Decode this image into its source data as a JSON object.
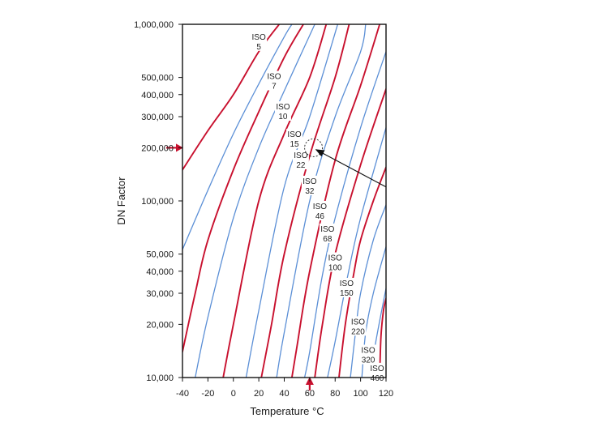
{
  "chart_data": {
    "type": "line",
    "title": "",
    "xlabel": "Temperature °C",
    "ylabel": "DN Factor",
    "x_scale": "linear",
    "y_scale": "log",
    "xlim": [
      -40,
      120
    ],
    "ylim": [
      10000,
      1000000
    ],
    "x_ticks": [
      -40,
      -20,
      0,
      20,
      40,
      60,
      80,
      100,
      120
    ],
    "x_tick_labels": [
      "-40",
      "-20",
      "0",
      "20",
      "40",
      "60",
      "80",
      "100",
      "120"
    ],
    "y_ticks": [
      10000,
      20000,
      30000,
      40000,
      50000,
      100000,
      200000,
      300000,
      400000,
      500000,
      1000000
    ],
    "y_tick_labels": [
      "10,000",
      "20,000",
      "30,000",
      "40,000",
      "50,000",
      "100,000",
      "200,000",
      "300,000",
      "400,000",
      "500,000",
      "1,000,000"
    ],
    "grid": false,
    "colors": {
      "red": "#c8102e",
      "blue": "#5b8fd6",
      "axis": "#111111",
      "marker": "#c8102e"
    },
    "curves": [
      {
        "color": "red",
        "points": [
          [
            -40,
            150000
          ],
          [
            -20,
            250000
          ],
          [
            0,
            400000
          ],
          [
            20,
            700000
          ],
          [
            36,
            1000000
          ]
        ]
      },
      {
        "color": "blue",
        "points": [
          [
            -40,
            53000
          ],
          [
            -20,
            115000
          ],
          [
            0,
            240000
          ],
          [
            20,
            460000
          ],
          [
            40,
            850000
          ],
          [
            46,
            1000000
          ]
        ]
      },
      {
        "color": "red",
        "points": [
          [
            -40,
            14000
          ],
          [
            -30,
            30000
          ],
          [
            -20,
            60000
          ],
          [
            0,
            150000
          ],
          [
            20,
            320000
          ],
          [
            40,
            650000
          ],
          [
            55,
            1000000
          ]
        ]
      },
      {
        "color": "blue",
        "points": [
          [
            -30,
            10000
          ],
          [
            -20,
            22000
          ],
          [
            0,
            80000
          ],
          [
            20,
            200000
          ],
          [
            40,
            420000
          ],
          [
            64,
            1000000
          ]
        ]
      },
      {
        "color": "red",
        "points": [
          [
            -8,
            10000
          ],
          [
            0,
            20000
          ],
          [
            20,
            100000
          ],
          [
            40,
            240000
          ],
          [
            60,
            500000
          ],
          [
            73,
            1000000
          ]
        ]
      },
      {
        "color": "blue",
        "points": [
          [
            10,
            10000
          ],
          [
            20,
            24000
          ],
          [
            40,
            120000
          ],
          [
            60,
            300000
          ],
          [
            82,
            1000000
          ]
        ]
      },
      {
        "color": "red",
        "points": [
          [
            22,
            10000
          ],
          [
            30,
            20000
          ],
          [
            40,
            50000
          ],
          [
            60,
            180000
          ],
          [
            80,
            500000
          ],
          [
            91,
            1000000
          ]
        ]
      },
      {
        "color": "blue",
        "points": [
          [
            34,
            10000
          ],
          [
            40,
            18000
          ],
          [
            60,
            100000
          ],
          [
            80,
            300000
          ],
          [
            100,
            700000
          ],
          [
            104,
            1000000
          ]
        ]
      },
      {
        "color": "red",
        "points": [
          [
            46,
            10000
          ],
          [
            50,
            15000
          ],
          [
            60,
            40000
          ],
          [
            80,
            170000
          ],
          [
            100,
            450000
          ],
          [
            115,
            1000000
          ]
        ]
      },
      {
        "color": "blue",
        "points": [
          [
            56,
            10000
          ],
          [
            60,
            14000
          ],
          [
            70,
            38000
          ],
          [
            80,
            80000
          ],
          [
            100,
            260000
          ],
          [
            120,
            700000
          ]
        ]
      },
      {
        "color": "red",
        "points": [
          [
            64,
            10000
          ],
          [
            70,
            20000
          ],
          [
            80,
            50000
          ],
          [
            100,
            160000
          ],
          [
            120,
            430000
          ]
        ]
      },
      {
        "color": "blue",
        "points": [
          [
            74,
            10000
          ],
          [
            80,
            16000
          ],
          [
            90,
            38000
          ],
          [
            100,
            80000
          ],
          [
            120,
            260000
          ]
        ]
      },
      {
        "color": "red",
        "points": [
          [
            83,
            10000
          ],
          [
            88,
            20000
          ],
          [
            95,
            40000
          ],
          [
            100,
            60000
          ],
          [
            110,
            100000
          ],
          [
            120,
            155000
          ]
        ]
      },
      {
        "color": "blue",
        "points": [
          [
            92,
            10000
          ],
          [
            96,
            18000
          ],
          [
            100,
            30000
          ],
          [
            110,
            60000
          ],
          [
            120,
            95000
          ]
        ]
      },
      {
        "color": "blue",
        "points": [
          [
            101,
            10000
          ],
          [
            104,
            18000
          ],
          [
            110,
            30000
          ],
          [
            120,
            55000
          ]
        ]
      },
      {
        "color": "blue",
        "points": [
          [
            108,
            10000
          ],
          [
            112,
            16000
          ],
          [
            120,
            32000
          ]
        ]
      },
      {
        "color": "red",
        "points": [
          [
            115,
            10000
          ],
          [
            116,
            17000
          ],
          [
            118,
            24000
          ],
          [
            120,
            28000
          ]
        ]
      }
    ],
    "iso_labels": [
      {
        "line1": "ISO",
        "line2": "5",
        "x": 20,
        "y": 820000
      },
      {
        "line1": "ISO",
        "line2": "7",
        "x": 32,
        "y": 490000
      },
      {
        "line1": "ISO",
        "line2": "10",
        "x": 39,
        "y": 330000
      },
      {
        "line1": "ISO",
        "line2": "15",
        "x": 48,
        "y": 230000
      },
      {
        "line1": "ISO",
        "line2": "22",
        "x": 53,
        "y": 175000
      },
      {
        "line1": "ISO",
        "line2": "32",
        "x": 60,
        "y": 125000
      },
      {
        "line1": "ISO",
        "line2": "46",
        "x": 68,
        "y": 90000
      },
      {
        "line1": "ISO",
        "line2": "68",
        "x": 74,
        "y": 67000
      },
      {
        "line1": "ISO",
        "line2": "100",
        "x": 80,
        "y": 46000
      },
      {
        "line1": "ISO",
        "line2": "150",
        "x": 89,
        "y": 33000
      },
      {
        "line1": "ISO",
        "line2": "220",
        "x": 98,
        "y": 20000
      },
      {
        "line1": "ISO",
        "line2": "320",
        "x": 106,
        "y": 13800
      },
      {
        "line1": "ISO",
        "line2": "460",
        "x": 113,
        "y": 10900
      }
    ],
    "annotations": {
      "dn_marker_value": 200000,
      "temperature_marker_value": 60,
      "circle_center": [
        63,
        200000
      ],
      "arrow_from": [
        120,
        120000
      ],
      "arrow_to": [
        65,
        195000
      ]
    }
  }
}
